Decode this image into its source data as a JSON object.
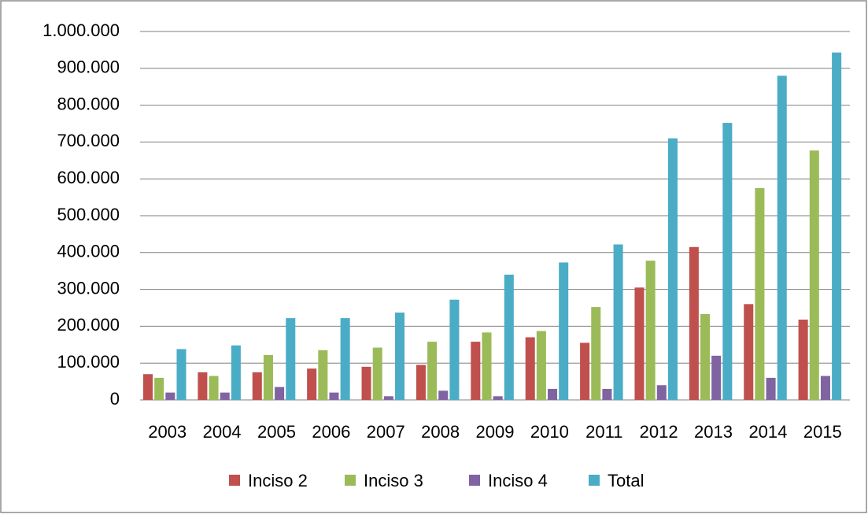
{
  "chart_data": {
    "type": "bar",
    "categories": [
      "2003",
      "2004",
      "2005",
      "2006",
      "2007",
      "2008",
      "2009",
      "2010",
      "2011",
      "2012",
      "2013",
      "2014",
      "2015"
    ],
    "series": [
      {
        "name": "Inciso 2",
        "color": "#c0504d",
        "values": [
          70000,
          75000,
          75000,
          85000,
          90000,
          95000,
          158000,
          170000,
          155000,
          305000,
          415000,
          260000,
          218000
        ]
      },
      {
        "name": "Inciso 3",
        "color": "#9bbb59",
        "values": [
          60000,
          65000,
          122000,
          135000,
          142000,
          158000,
          183000,
          187000,
          252000,
          378000,
          233000,
          575000,
          677000
        ]
      },
      {
        "name": "Inciso 4",
        "color": "#8064a2",
        "values": [
          20000,
          20000,
          35000,
          20000,
          10000,
          25000,
          10000,
          30000,
          30000,
          40000,
          120000,
          60000,
          65000
        ]
      },
      {
        "name": "Total",
        "color": "#4bacc6",
        "values": [
          138000,
          148000,
          222000,
          222000,
          237000,
          272000,
          340000,
          373000,
          422000,
          710000,
          752000,
          880000,
          943000
        ]
      }
    ],
    "ylim": [
      0,
      1000000
    ],
    "yticks": [
      0,
      {
        "value": 100000,
        "label": "100.000"
      },
      {
        "value": 200000,
        "label": "200.000"
      },
      {
        "value": 300000,
        "label": "300.000"
      },
      {
        "value": 400000,
        "label": "400.000"
      },
      {
        "value": 500000,
        "label": "500.000"
      },
      {
        "value": 600000,
        "label": "600.000"
      },
      {
        "value": 700000,
        "label": "700.000"
      },
      {
        "value": 800000,
        "label": "800.000"
      },
      {
        "value": 900000,
        "label": "900.000"
      },
      {
        "value": 1000000,
        "label": "1.000.000"
      }
    ],
    "grid": true,
    "legend": "bottom"
  }
}
